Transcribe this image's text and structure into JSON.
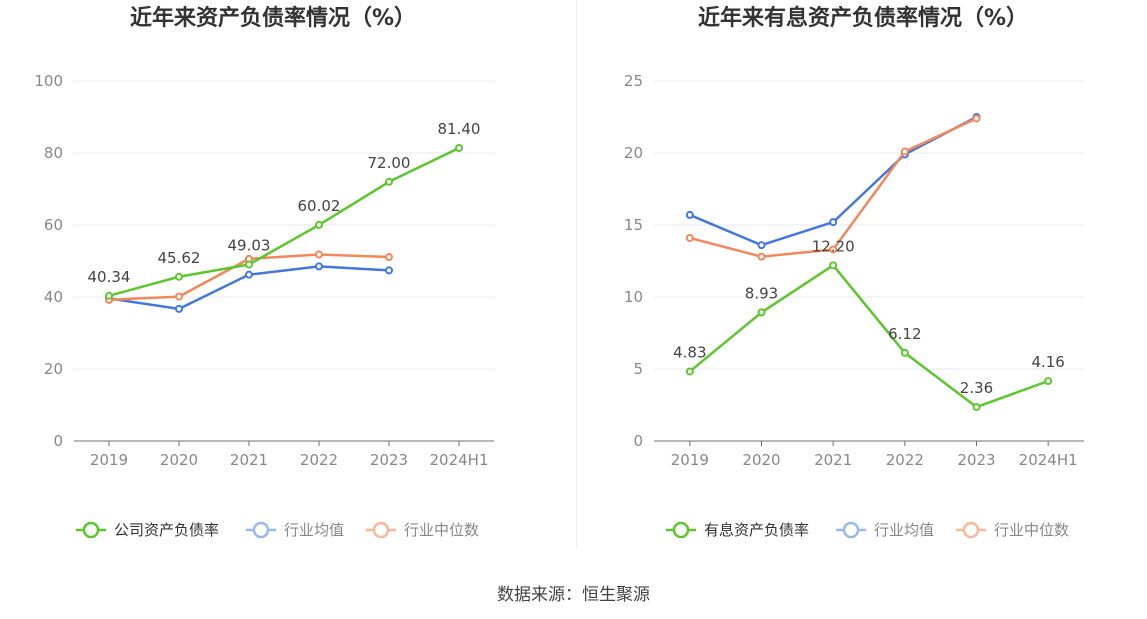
{
  "source_label": "数据来源：恒生聚源",
  "chart_data": [
    {
      "type": "line",
      "title": "近年来资产负债率情况（%）",
      "categories": [
        "2019",
        "2020",
        "2021",
        "2022",
        "2023",
        "2024H1"
      ],
      "ylim": [
        0,
        100
      ],
      "yticks": [
        0,
        20,
        40,
        60,
        80,
        100
      ],
      "grid": true,
      "legend_position": "bottom",
      "series": [
        {
          "name": "公司资产负债率",
          "color": "#5cc62d",
          "values": [
            40.34,
            45.62,
            49.03,
            60.02,
            72.0,
            81.4
          ],
          "labels": [
            "40.34",
            "45.62",
            "49.03",
            "60.02",
            "72.00",
            "81.40"
          ]
        },
        {
          "name": "行业均值",
          "color": "#4477dd",
          "values": [
            39.6,
            36.7,
            46.2,
            48.5,
            47.4,
            null
          ]
        },
        {
          "name": "行业中位数",
          "color": "#f2885a",
          "values": [
            39.2,
            40.1,
            50.6,
            51.8,
            51.1,
            null
          ]
        }
      ]
    },
    {
      "type": "line",
      "title": "近年来有息资产负债率情况（%）",
      "categories": [
        "2019",
        "2020",
        "2021",
        "2022",
        "2023",
        "2024H1"
      ],
      "ylim": [
        0,
        25
      ],
      "yticks": [
        0,
        5,
        10,
        15,
        20,
        25
      ],
      "grid": true,
      "legend_position": "bottom",
      "series": [
        {
          "name": "有息资产负债率",
          "color": "#5cc62d",
          "values": [
            4.83,
            8.93,
            12.2,
            6.12,
            2.36,
            4.16
          ],
          "labels": [
            "4.83",
            "8.93",
            "12.20",
            "6.12",
            "2.36",
            "4.16"
          ]
        },
        {
          "name": "行业均值",
          "color": "#4477dd",
          "values": [
            15.7,
            13.6,
            15.2,
            19.9,
            22.5,
            null
          ]
        },
        {
          "name": "行业中位数",
          "color": "#f2885a",
          "values": [
            14.1,
            12.8,
            13.3,
            20.1,
            22.4,
            null
          ]
        }
      ]
    }
  ]
}
